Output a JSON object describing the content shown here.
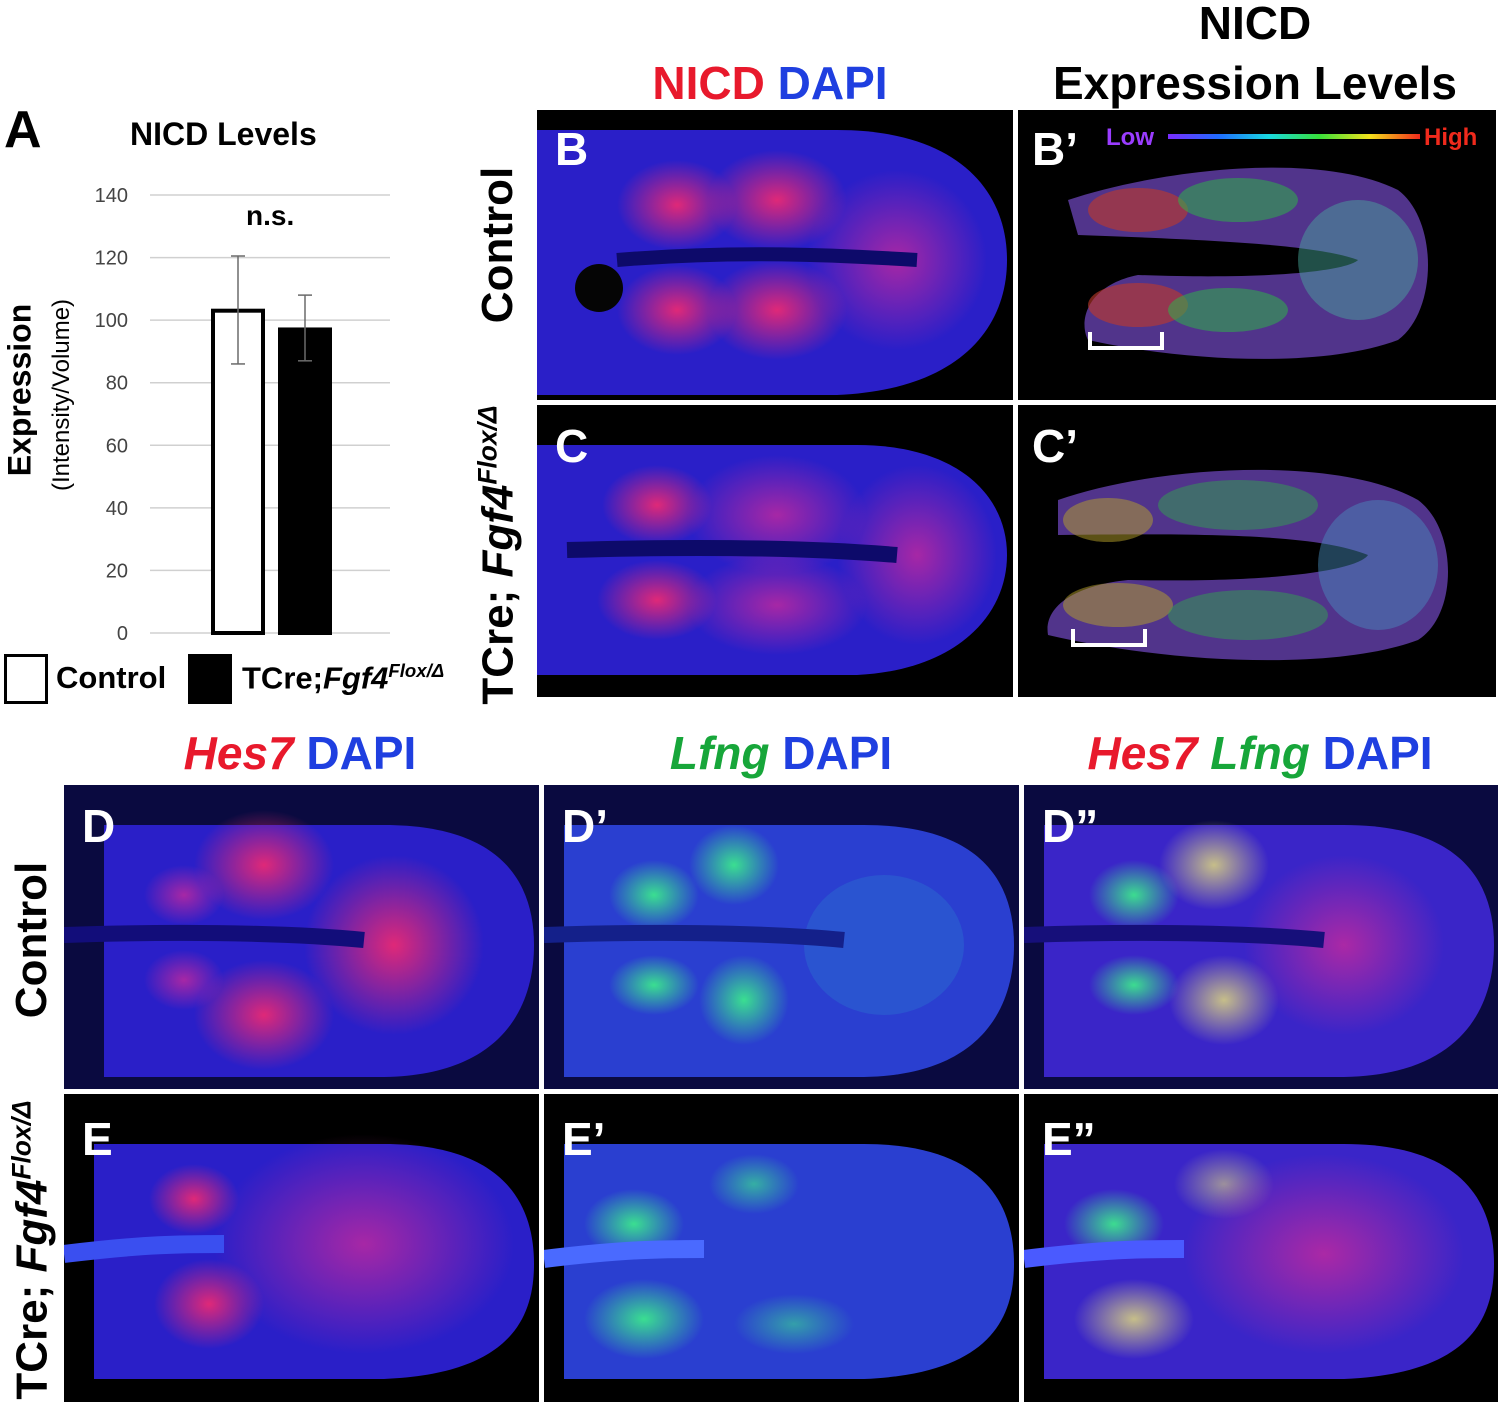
{
  "panelA": {
    "letter": "A",
    "title": "NICD Levels",
    "ylabel_main": "Expression",
    "ylabel_sub": "(Intensity/Volume)",
    "significance": "n.s.",
    "legend": [
      {
        "label": "Control",
        "fill": "#ffffff"
      },
      {
        "label_prefix": "TCre;",
        "label_gene": "Fgf4",
        "label_sup": "Flox/Δ",
        "fill": "#000000"
      }
    ]
  },
  "chart_data": {
    "type": "bar",
    "title": "NICD Levels",
    "ylabel": "Expression (Intensity/Volume)",
    "xlabel": "",
    "ylim": [
      0,
      140
    ],
    "yticks": [
      0,
      20,
      40,
      60,
      80,
      100,
      120,
      140
    ],
    "grid": true,
    "categories": [
      "Control",
      "TCre;Fgf4Flox/Δ"
    ],
    "values": [
      103.5,
      97.5
    ],
    "error_upper": [
      120.5,
      108
    ],
    "error_lower": [
      86,
      87
    ],
    "colors": [
      "#ffffff",
      "#000000"
    ],
    "annotation": "n.s.",
    "legend_placement": "bottom"
  },
  "headers": {
    "nicd_dapi": {
      "a": "NICD",
      "b": "DAPI"
    },
    "nicd_levels_line1": "NICD",
    "nicd_levels_line2": "Expression Levels",
    "hes7_dapi": {
      "a": "Hes7",
      "b": "DAPI"
    },
    "lfng_dapi": {
      "a": "Lfng",
      "b": "DAPI"
    },
    "merge": {
      "a": "Hes7",
      "b": "Lfng",
      "c": "DAPI"
    }
  },
  "colorbar": {
    "low": "Low",
    "high": "High"
  },
  "rows": {
    "control": "Control",
    "mutant_prefix": "TCre; ",
    "mutant_gene": "Fgf4",
    "mutant_sup": "Flox/Δ"
  },
  "panels": {
    "B": "B",
    "Bp": "B’",
    "C": "C",
    "Cp": "C’",
    "D": "D",
    "Dp": "D’",
    "Dpp": "D”",
    "E": "E",
    "Ep": "E’",
    "Epp": "E”"
  },
  "colors": {
    "nicd": "#e8192c",
    "dapi": "#1f3fe0",
    "lfng": "#17a63a"
  }
}
